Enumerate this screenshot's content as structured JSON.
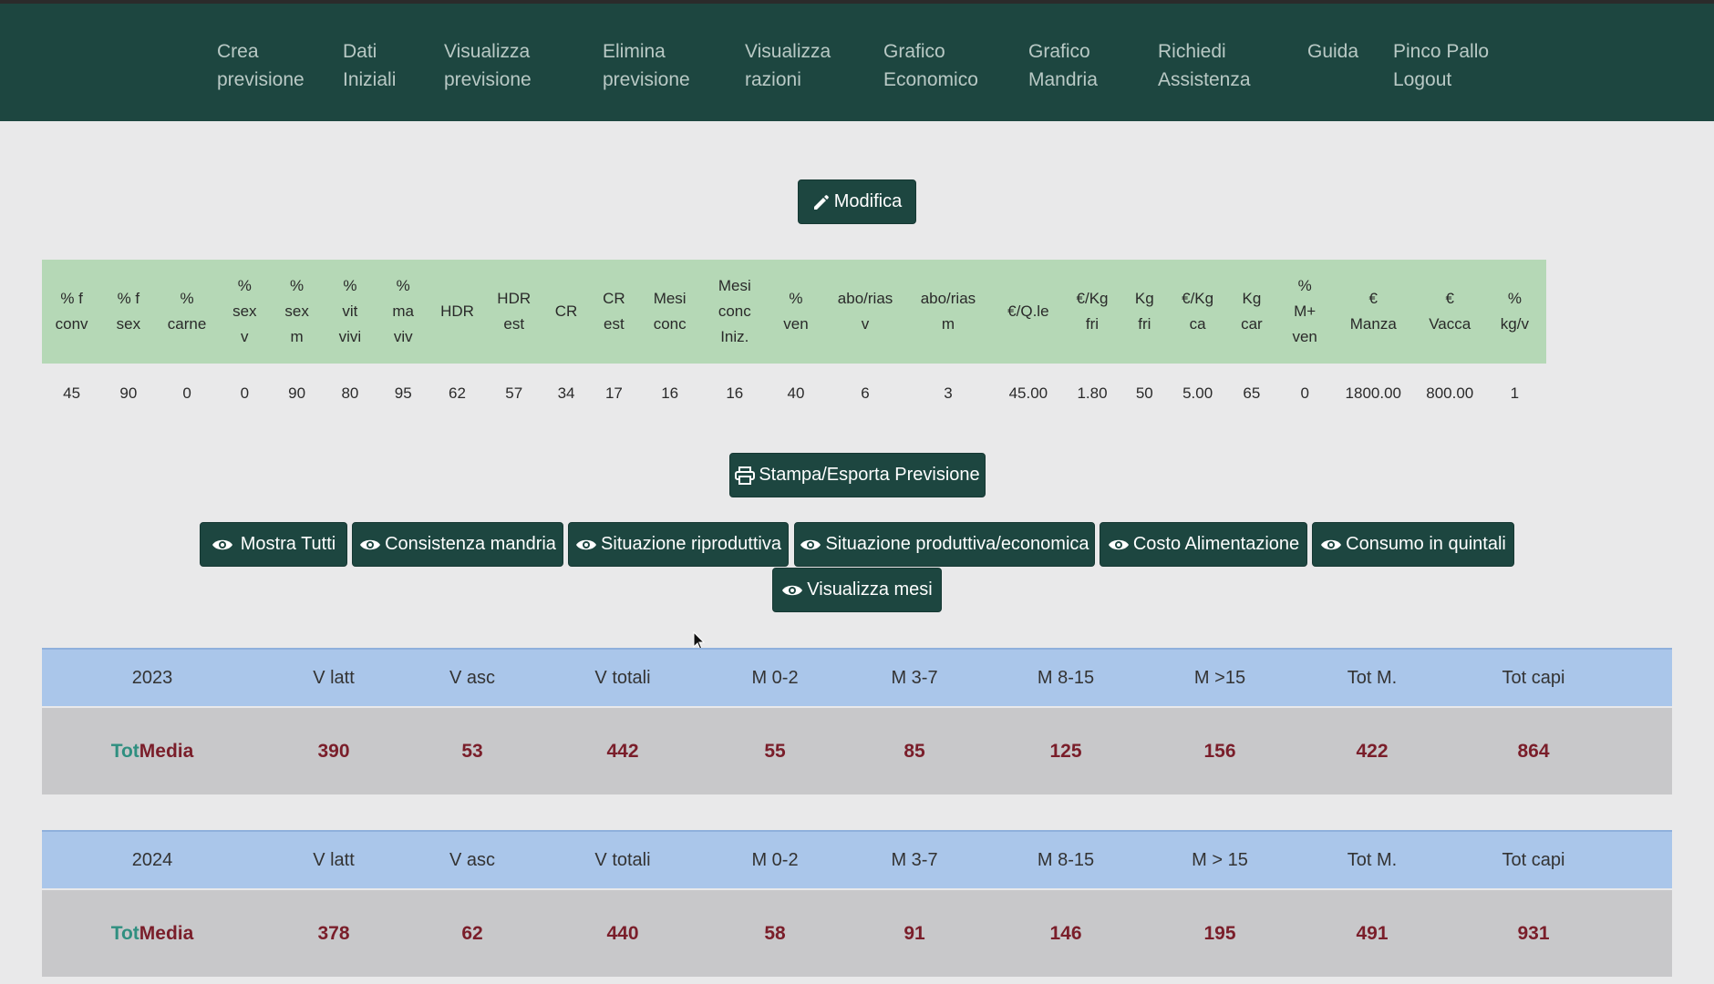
{
  "nav": {
    "items": [
      {
        "l1": "Crea",
        "l2": "previsione"
      },
      {
        "l1": "Dati",
        "l2": "Iniziali"
      },
      {
        "l1": "Visualizza",
        "l2": "previsione"
      },
      {
        "l1": "Elimina",
        "l2": "previsione"
      },
      {
        "l1": "Visualizza",
        "l2": "razioni"
      },
      {
        "l1": "Grafico",
        "l2": "Economico"
      },
      {
        "l1": "Grafico",
        "l2": "Mandria"
      },
      {
        "l1": "Richiedi",
        "l2": "Assistenza"
      },
      {
        "l1": "Guida",
        "l2": ""
      },
      {
        "l1": "Pinco Pallo",
        "l2": "Logout"
      }
    ]
  },
  "buttons": {
    "modifica": "Modifica",
    "stampa": "Stampa/Esporta Previsione",
    "mostra_tutti": "Mostra Tutti",
    "consistenza": "Consistenza mandria",
    "riproduttiva": "Situazione riproduttiva",
    "produttiva": "Situazione produttiva/economica",
    "costo": "Costo Alimentazione",
    "consumo": "Consumo in quintali",
    "mesi": "Visualizza mesi"
  },
  "params": {
    "headers": [
      "% f\nconv",
      "% f\nsex",
      "%\ncarne",
      "%\nsex\nv",
      "%\nsex\nm",
      "%\nvit\nvivi",
      "%\nma\nviv",
      "HDR",
      "HDR\nest",
      "CR",
      "CR\nest",
      "Mesi\nconc",
      "Mesi\nconc\nIniz.",
      "%\nven",
      "abo/rias\nv",
      "abo/rias\nm",
      "€/Q.le",
      "€/Kg\nfri",
      "Kg\nfri",
      "€/Kg\nca",
      "Kg\ncar",
      "%\nM+\nven",
      "€\nManza",
      "€\nVacca",
      "%\nkg/v"
    ],
    "values": [
      "45",
      "90",
      "0",
      "0",
      "90",
      "80",
      "95",
      "62",
      "57",
      "34",
      "17",
      "16",
      "16",
      "40",
      "6",
      "3",
      "45.00",
      "1.80",
      "50",
      "5.00",
      "65",
      "0",
      "1800.00",
      "800.00",
      "1"
    ]
  },
  "year_tables": [
    {
      "headers": [
        "2023",
        "V latt",
        "V asc",
        "V totali",
        "M 0-2",
        "M 3-7",
        "M 8-15",
        "M >15",
        "Tot M.",
        "Tot capi"
      ],
      "tot": "Tot",
      "media": "Media",
      "values": [
        "390",
        "53",
        "442",
        "55",
        "85",
        "125",
        "156",
        "422",
        "864"
      ]
    },
    {
      "headers": [
        "2024",
        "V latt",
        "V asc",
        "V totali",
        "M 0-2",
        "M 3-7",
        "M 8-15",
        "M > 15",
        "Tot M.",
        "Tot capi"
      ],
      "tot": "Tot",
      "media": "Media",
      "values": [
        "378",
        "62",
        "440",
        "58",
        "91",
        "146",
        "195",
        "491",
        "931"
      ]
    }
  ],
  "colors": {
    "primary": "#1d4640",
    "params_header": "#b5d8b6",
    "year_header": "#aac6ea",
    "row_bg": "#c8c8ca",
    "value_text": "#7a1e2a",
    "tot_text": "#2f8f80"
  }
}
